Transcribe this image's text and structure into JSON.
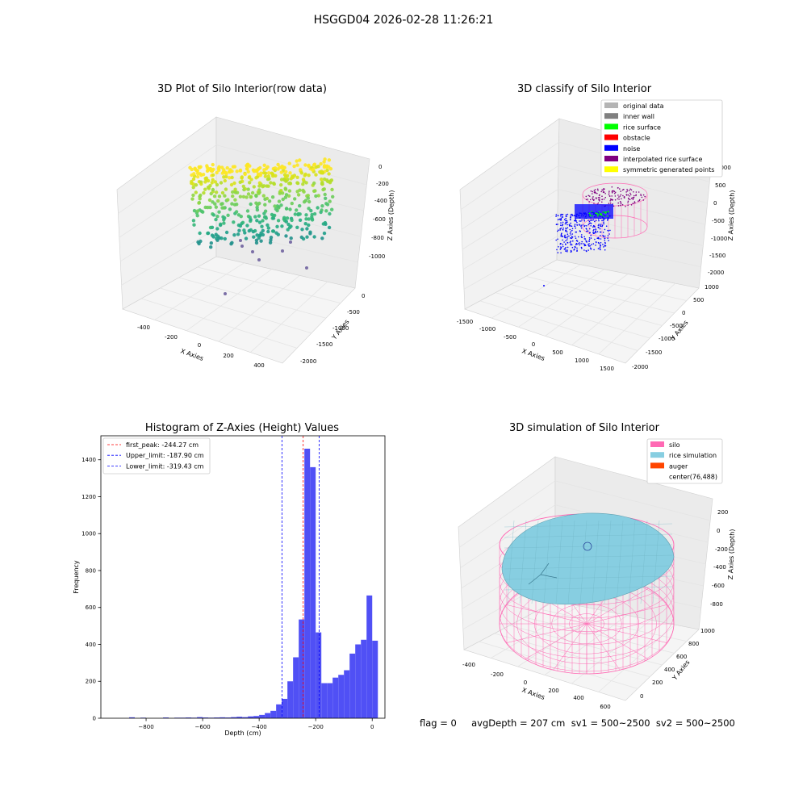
{
  "suptitle": "HSGGD04 2026-02-28 11:26:21",
  "footer": "flag = 0     avgDepth = 207 cm  sv1 = 500~2500  sv2 = 500~2500",
  "colors": {
    "histogram_bar": "#5050f5",
    "first_peak_line": "#ff0000",
    "limit_lines": "#0000ff",
    "silo": "#ff69b4",
    "rice_simulation": "#87cee1",
    "auger": "#ff4500"
  },
  "chart_data": [
    {
      "type": "scatter",
      "title": "3D Plot of Silo Interior(row data)",
      "xlabel": "X Axies",
      "ylabel": "Y Axies",
      "zlabel": "Z Axies (Depth)",
      "xticks": [
        "-400",
        "-200",
        "0",
        "200",
        "400"
      ],
      "yticks": [
        "0",
        "-500",
        "-1000",
        "-1500",
        "-2000"
      ],
      "zticks": [
        "0",
        "-200",
        "-400",
        "-600",
        "-800",
        "-1000"
      ],
      "colormap": "viridis"
    },
    {
      "type": "scatter",
      "title": "3D classify of Silo Interior",
      "xlabel": "X Axies",
      "ylabel": "Y Axies",
      "zlabel": "Z Axies (Depth)",
      "xticks": [
        "-1500",
        "-1000",
        "-500",
        "0",
        "500",
        "1000",
        "1500"
      ],
      "yticks": [
        "1000",
        "500",
        "0",
        "-500",
        "-1000",
        "-1500",
        "-2000"
      ],
      "zticks": [
        "1000",
        "500",
        "0",
        "-500",
        "-1000",
        "-1500",
        "-2000"
      ],
      "legend_position": "top-right",
      "legend": [
        {
          "label": "original data",
          "color": "#b4b4b4"
        },
        {
          "label": "inner wall",
          "color": "#808080"
        },
        {
          "label": "rice surface",
          "color": "#00ff00"
        },
        {
          "label": "obstacle",
          "color": "#ff0000"
        },
        {
          "label": "noise",
          "color": "#0000ff"
        },
        {
          "label": "interpolated rice surface",
          "color": "#800080"
        },
        {
          "label": "symmetric generated points",
          "color": "#ffff00"
        }
      ]
    },
    {
      "type": "bar",
      "title": "Histogram of Z-Axies (Height) Values",
      "xlabel": "Depth (cm)",
      "ylabel": "Frequency",
      "xlim": [
        -960,
        45
      ],
      "ylim": [
        0,
        1530
      ],
      "xticks": [
        -800,
        -600,
        -400,
        -200,
        0
      ],
      "yticks": [
        0,
        200,
        400,
        600,
        800,
        1000,
        1200,
        1400
      ],
      "bin_width": 20,
      "bins": [
        {
          "x0": -860,
          "count": 5
        },
        {
          "x0": -820,
          "count": 3
        },
        {
          "x0": -740,
          "count": 4
        },
        {
          "x0": -700,
          "count": 3
        },
        {
          "x0": -680,
          "count": 3
        },
        {
          "x0": -660,
          "count": 4
        },
        {
          "x0": -640,
          "count": 3
        },
        {
          "x0": -620,
          "count": 6
        },
        {
          "x0": -600,
          "count": 4
        },
        {
          "x0": -580,
          "count": 3
        },
        {
          "x0": -560,
          "count": 4
        },
        {
          "x0": -540,
          "count": 5
        },
        {
          "x0": -520,
          "count": 4
        },
        {
          "x0": -500,
          "count": 6
        },
        {
          "x0": -480,
          "count": 8
        },
        {
          "x0": -460,
          "count": 6
        },
        {
          "x0": -440,
          "count": 10
        },
        {
          "x0": -420,
          "count": 12
        },
        {
          "x0": -400,
          "count": 18
        },
        {
          "x0": -380,
          "count": 28
        },
        {
          "x0": -360,
          "count": 40
        },
        {
          "x0": -340,
          "count": 75
        },
        {
          "x0": -320,
          "count": 105
        },
        {
          "x0": -300,
          "count": 200
        },
        {
          "x0": -280,
          "count": 330
        },
        {
          "x0": -260,
          "count": 535
        },
        {
          "x0": -240,
          "count": 1460
        },
        {
          "x0": -220,
          "count": 1360
        },
        {
          "x0": -200,
          "count": 465
        },
        {
          "x0": -180,
          "count": 190
        },
        {
          "x0": -160,
          "count": 190
        },
        {
          "x0": -140,
          "count": 220
        },
        {
          "x0": -120,
          "count": 235
        },
        {
          "x0": -100,
          "count": 260
        },
        {
          "x0": -80,
          "count": 350
        },
        {
          "x0": -60,
          "count": 400
        },
        {
          "x0": -40,
          "count": 425
        },
        {
          "x0": -20,
          "count": 665
        },
        {
          "x0": 0,
          "count": 420
        }
      ],
      "vlines": [
        {
          "label": "first_peak: -244.27 cm",
          "x": -244.27,
          "color": "#ff0000"
        },
        {
          "label": "Upper_limit: -187.90 cm",
          "x": -187.9,
          "color": "#0000ff"
        },
        {
          "label": "Lower_limit: -319.43 cm",
          "x": -319.43,
          "color": "#0000ff"
        }
      ],
      "legend_position": "top-left"
    },
    {
      "type": "scatter",
      "title": "3D simulation of Silo Interior",
      "xlabel": "X Axies",
      "ylabel": "Y Axies",
      "zlabel": "Z Axies (Depth)",
      "xticks": [
        "-400",
        "-200",
        "0",
        "200",
        "400",
        "600"
      ],
      "yticks": [
        "1000",
        "800",
        "600",
        "400",
        "200",
        "0"
      ],
      "zticks": [
        "200",
        "0",
        "-200",
        "-400",
        "-600",
        "-800"
      ],
      "legend_position": "top-right",
      "legend": [
        {
          "label": "silo",
          "color": "#ff69b4"
        },
        {
          "label": "rice simulation",
          "color": "#87cee1"
        },
        {
          "label": "auger",
          "color": "#ff4500"
        },
        {
          "label": "center(76,488)",
          "color": ""
        }
      ]
    }
  ]
}
